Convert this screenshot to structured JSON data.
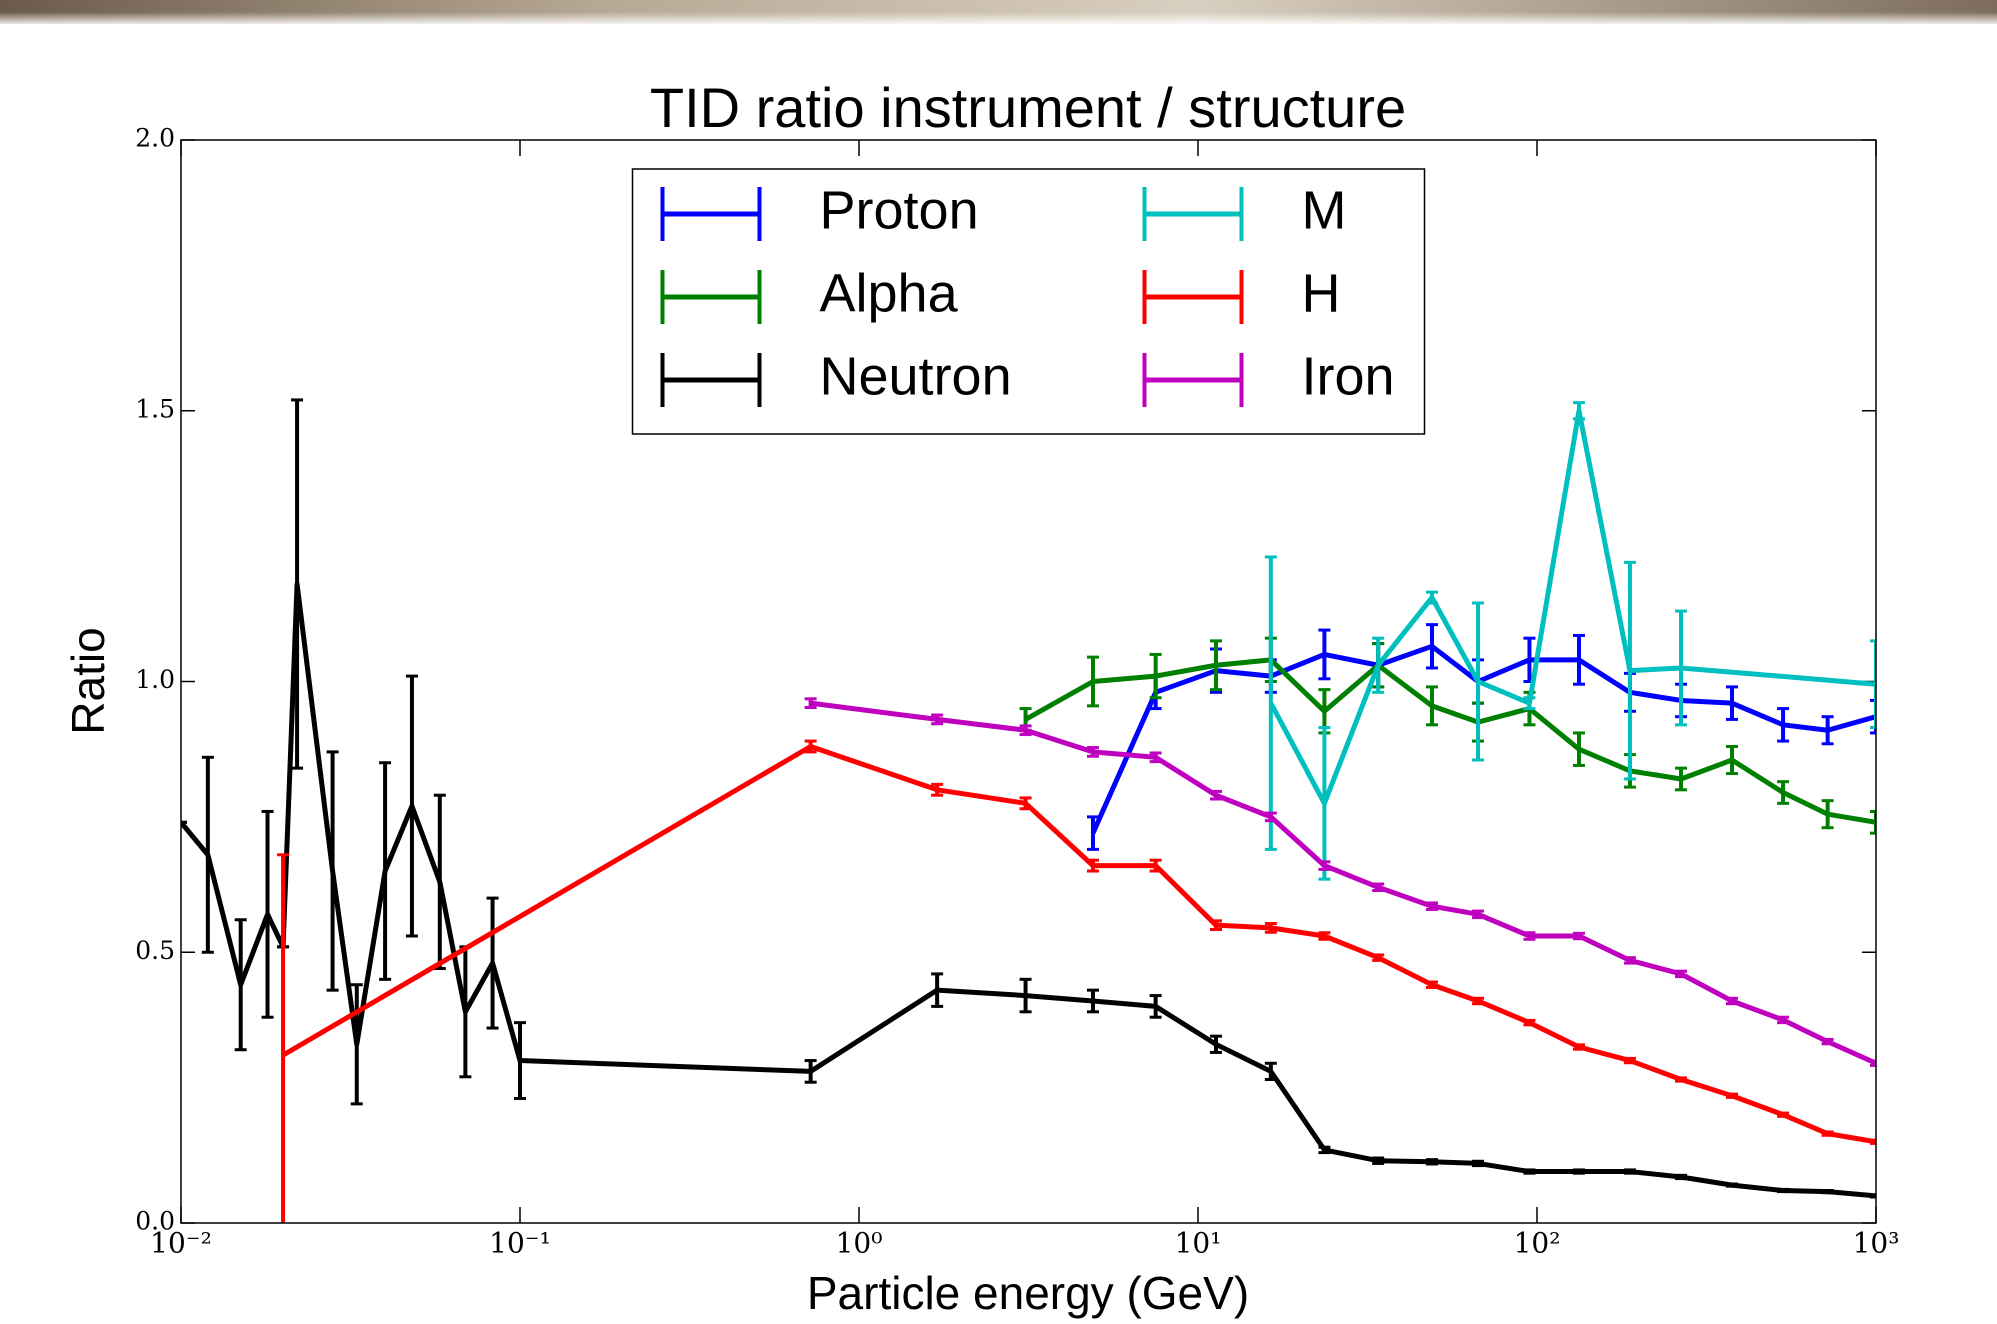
{
  "chart_data": {
    "type": "errorbar-line",
    "title": "TID ratio instrument / structure",
    "xlabel": "Particle energy (GeV)",
    "ylabel": "Ratio",
    "xscale": "log",
    "xlim": [
      0.01,
      1000
    ],
    "ylim": [
      0,
      2
    ],
    "xticks": [
      {
        "value": 0.01,
        "label": "10⁻²"
      },
      {
        "value": 0.1,
        "label": "10⁻¹"
      },
      {
        "value": 1,
        "label": "10⁰"
      },
      {
        "value": 10,
        "label": "10¹"
      },
      {
        "value": 100,
        "label": "10²"
      },
      {
        "value": 1000,
        "label": "10³"
      }
    ],
    "yticks": [
      {
        "value": 0,
        "label": "0.0"
      },
      0.5,
      {
        "value": 1,
        "label": "1.0"
      },
      1.5,
      {
        "value": 2,
        "label": "2.0"
      }
    ],
    "legend": {
      "loc": "upper center",
      "ncol": 2
    },
    "series": [
      {
        "name": "Proton",
        "color": "#0000ff",
        "x": [
          4.9,
          7.5,
          11.3,
          16.4,
          23.6,
          34,
          49,
          67,
          95,
          133,
          188,
          266,
          376,
          532,
          720,
          1000
        ],
        "values": [
          0.72,
          0.98,
          1.02,
          1.01,
          1.05,
          1.03,
          1.065,
          1.0,
          1.04,
          1.04,
          0.98,
          0.965,
          0.96,
          0.92,
          0.91,
          0.935
        ],
        "errors": [
          0.03,
          0.03,
          0.04,
          0.03,
          0.045,
          0.04,
          0.04,
          0.04,
          0.04,
          0.045,
          0.035,
          0.03,
          0.03,
          0.03,
          0.025,
          0.03
        ]
      },
      {
        "name": "Alpha",
        "color": "#008000",
        "x": [
          3.1,
          4.9,
          7.5,
          11.3,
          16.4,
          23.6,
          34,
          49,
          67,
          95,
          133,
          188,
          266,
          376,
          532,
          720,
          1000
        ],
        "values": [
          0.93,
          1.0,
          1.01,
          1.03,
          1.04,
          0.945,
          1.03,
          0.955,
          0.925,
          0.95,
          0.875,
          0.835,
          0.82,
          0.855,
          0.795,
          0.755,
          0.74
        ],
        "errors": [
          0.02,
          0.045,
          0.04,
          0.045,
          0.04,
          0.04,
          0.04,
          0.035,
          0.035,
          0.03,
          0.03,
          0.03,
          0.02,
          0.025,
          0.02,
          0.025,
          0.02
        ]
      },
      {
        "name": "Neutron",
        "color": "#000000",
        "x": [
          0.01,
          0.012,
          0.015,
          0.018,
          0.02,
          0.022,
          0.028,
          0.033,
          0.04,
          0.048,
          0.058,
          0.069,
          0.083,
          0.1,
          0.72,
          1.7,
          3.1,
          4.9,
          7.5,
          11.3,
          16.4,
          23.6,
          34,
          49,
          67,
          95,
          133,
          188,
          266,
          376,
          532,
          720,
          1000
        ],
        "values": [
          0.74,
          0.68,
          0.44,
          0.57,
          0.51,
          1.18,
          0.65,
          0.33,
          0.65,
          0.77,
          0.63,
          0.39,
          0.48,
          0.3,
          0.28,
          0.43,
          0.42,
          0.41,
          0.4,
          0.33,
          0.28,
          0.135,
          0.115,
          0.113,
          0.11,
          0.095,
          0.095,
          0.095,
          0.085,
          0.07,
          0.06,
          0.058,
          0.05
        ],
        "errors": [
          0.0,
          0.18,
          0.12,
          0.19,
          0.0,
          0.34,
          0.22,
          0.11,
          0.2,
          0.24,
          0.16,
          0.12,
          0.12,
          0.07,
          0.02,
          0.03,
          0.03,
          0.02,
          0.02,
          0.015,
          0.015,
          0.005,
          0.005,
          0.004,
          0.004,
          0.003,
          0.003,
          0.003,
          0.003,
          0.002,
          0.002,
          0.002,
          0.002
        ]
      },
      {
        "name": "M",
        "color": "#00bfbf",
        "x": [
          16.4,
          23.6,
          34,
          49,
          67,
          95,
          133,
          188,
          266,
          1000
        ],
        "values": [
          0.96,
          0.775,
          1.03,
          1.155,
          1.0,
          0.96,
          1.5,
          1.02,
          1.025,
          0.995
        ],
        "errors": [
          0.27,
          0.14,
          0.05,
          0.01,
          0.145,
          0.01,
          0.015,
          0.2,
          0.105,
          0.08
        ]
      },
      {
        "name": "H",
        "color": "#ff0000",
        "x": [
          0.02,
          0.72,
          1.7,
          3.1,
          4.9,
          7.5,
          11.3,
          16.4,
          23.6,
          34,
          49,
          67,
          95,
          133,
          188,
          266,
          376,
          532,
          720,
          1000
        ],
        "values": [
          0.31,
          0.88,
          0.8,
          0.775,
          0.66,
          0.66,
          0.55,
          0.545,
          0.53,
          0.49,
          0.44,
          0.41,
          0.37,
          0.325,
          0.3,
          0.265,
          0.235,
          0.2,
          0.165,
          0.15
        ],
        "errors": [
          0.37,
          0.01,
          0.01,
          0.01,
          0.01,
          0.01,
          0.008,
          0.008,
          0.006,
          0.005,
          0.005,
          0.005,
          0.004,
          0.004,
          0.004,
          0.003,
          0.003,
          0.003,
          0.003,
          0.003
        ]
      },
      {
        "name": "Iron",
        "color": "#bf00bf",
        "x": [
          0.72,
          1.7,
          3.1,
          4.9,
          7.5,
          11.3,
          16.4,
          23.6,
          34,
          49,
          67,
          95,
          133,
          188,
          266,
          376,
          532,
          720,
          1000
        ],
        "values": [
          0.96,
          0.93,
          0.91,
          0.87,
          0.86,
          0.79,
          0.75,
          0.66,
          0.62,
          0.585,
          0.57,
          0.53,
          0.53,
          0.485,
          0.46,
          0.41,
          0.375,
          0.335,
          0.295
        ],
        "errors": [
          0.008,
          0.008,
          0.008,
          0.008,
          0.008,
          0.007,
          0.007,
          0.007,
          0.006,
          0.006,
          0.006,
          0.006,
          0.005,
          0.005,
          0.005,
          0.005,
          0.005,
          0.004,
          0.004
        ]
      }
    ]
  }
}
